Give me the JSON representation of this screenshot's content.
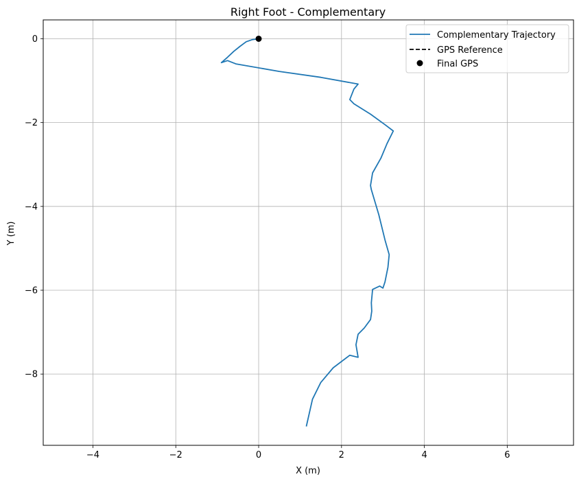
{
  "chart_data": {
    "type": "line",
    "title": "Right Foot - Complementary",
    "xlabel": "X (m)",
    "ylabel": "Y (m)",
    "xlim": [
      -5.2,
      7.6
    ],
    "ylim": [
      -9.7,
      0.45
    ],
    "xticks": [
      -4,
      -2,
      0,
      2,
      4,
      6
    ],
    "yticks": [
      0,
      -2,
      -4,
      -6,
      -8
    ],
    "xtick_labels": [
      "−4",
      "−2",
      "0",
      "2",
      "4",
      "6"
    ],
    "ytick_labels": [
      "0",
      "−2",
      "−4",
      "−6",
      "−8"
    ],
    "grid": true,
    "legend_position": "top-right",
    "legend": [
      "Complementary Trajectory",
      "GPS Reference",
      "Final GPS"
    ],
    "series": [
      {
        "name": "Complementary Trajectory",
        "color": "#1f77b4",
        "style": "solid",
        "x": [
          0.0,
          -0.15,
          -0.3,
          -0.45,
          -0.6,
          -0.75,
          -0.9,
          -0.75,
          -0.55,
          0.5,
          1.5,
          2.4,
          2.3,
          2.2,
          2.3,
          2.7,
          3.05,
          3.25,
          3.1,
          2.95,
          2.75,
          2.7,
          2.72,
          2.9,
          3.05,
          3.15,
          3.12,
          3.05,
          3.0,
          2.92,
          2.75,
          2.72,
          2.73,
          2.7,
          2.55,
          2.4,
          2.35,
          2.4,
          2.2,
          1.8,
          1.5,
          1.3,
          1.15
        ],
        "y": [
          0.0,
          -0.02,
          -0.07,
          -0.18,
          -0.3,
          -0.44,
          -0.57,
          -0.52,
          -0.6,
          -0.78,
          -0.92,
          -1.08,
          -1.2,
          -1.45,
          -1.55,
          -1.8,
          -2.05,
          -2.2,
          -2.5,
          -2.85,
          -3.2,
          -3.5,
          -3.6,
          -4.2,
          -4.8,
          -5.15,
          -5.45,
          -5.8,
          -5.95,
          -5.9,
          -5.98,
          -6.3,
          -6.5,
          -6.7,
          -6.9,
          -7.05,
          -7.3,
          -7.6,
          -7.55,
          -7.85,
          -8.2,
          -8.6,
          -9.25
        ]
      },
      {
        "name": "GPS Reference",
        "color": "#000000",
        "style": "dashed",
        "x": [],
        "y": []
      },
      {
        "name": "Final GPS",
        "color": "#000000",
        "style": "marker",
        "x": [
          0
        ],
        "y": [
          0
        ]
      }
    ]
  }
}
